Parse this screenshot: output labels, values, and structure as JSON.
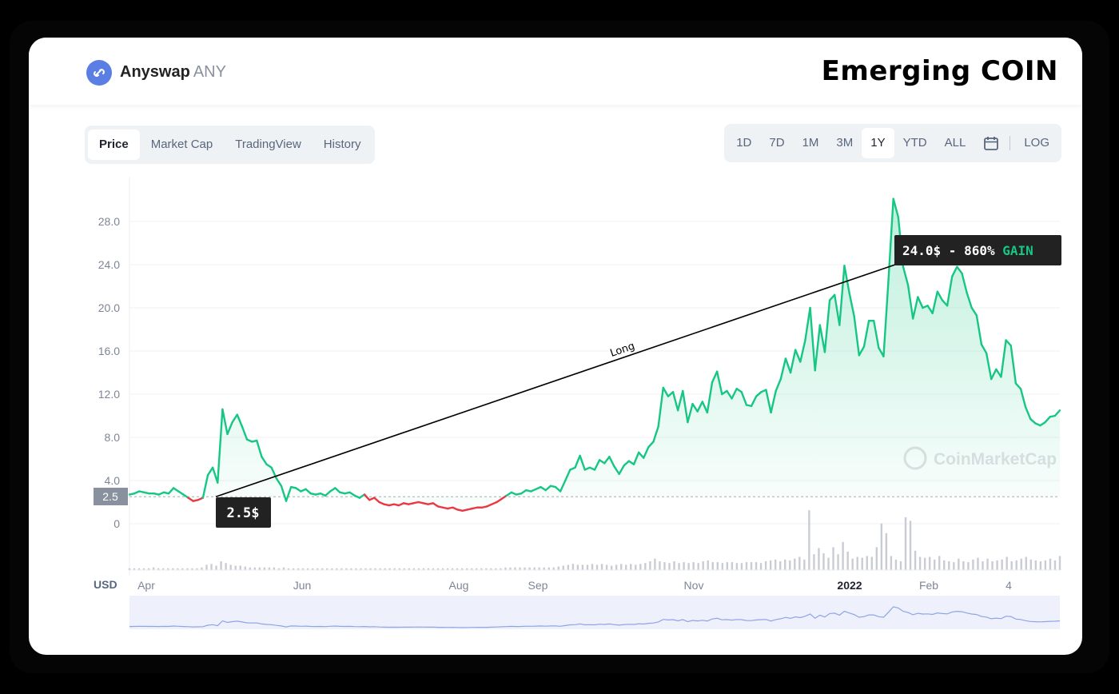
{
  "header": {
    "coin_name": "Anyswap",
    "coin_symbol": "ANY",
    "brand_title": "Emerging COIN"
  },
  "tabs": [
    "Price",
    "Market Cap",
    "TradingView",
    "History"
  ],
  "active_tab": "Price",
  "ranges": [
    "1D",
    "7D",
    "1M",
    "3M",
    "1Y",
    "YTD",
    "ALL"
  ],
  "active_range": "1Y",
  "log_label": "LOG",
  "colors": {
    "up": "#16c784",
    "down": "#ea3943",
    "accent": "#5b7ee5"
  },
  "annotations": {
    "entry_label": "2.5$",
    "exit_label": "24.0$ - 860% ",
    "exit_gain": "GAIN",
    "line_label": "Long",
    "current_price_tag": "2.5"
  },
  "watermark": "CoinMarketCap",
  "chart_data": {
    "type": "area",
    "ylim": [
      0,
      30
    ],
    "y_ticks": [
      "0",
      "4.0",
      "8.0",
      "12.0",
      "16.0",
      "20.0",
      "24.0",
      "28.0"
    ],
    "y_unit_label": "USD",
    "x_tick_labels": [
      "Apr",
      "Jun",
      "Aug",
      "Sep",
      "Nov",
      "2022",
      "Feb",
      "4"
    ],
    "baseline": 2.5,
    "price_series": [
      2.7,
      2.8,
      3.0,
      2.9,
      2.8,
      2.8,
      2.7,
      2.9,
      2.8,
      3.3,
      3.0,
      2.7,
      2.4,
      2.1,
      2.2,
      2.4,
      4.5,
      5.2,
      3.8,
      10.6,
      8.3,
      9.4,
      10.1,
      9.0,
      7.8,
      7.6,
      7.7,
      6.2,
      5.5,
      5.2,
      4.2,
      3.5,
      2.1,
      3.4,
      3.3,
      3.0,
      3.2,
      2.8,
      2.7,
      2.8,
      2.6,
      3.0,
      3.3,
      2.9,
      2.8,
      2.9,
      2.6,
      2.4,
      2.7,
      2.2,
      2.4,
      2.0,
      1.8,
      1.7,
      1.8,
      1.7,
      1.9,
      1.8,
      1.9,
      2.0,
      1.9,
      1.8,
      1.9,
      1.6,
      1.5,
      1.4,
      1.5,
      1.3,
      1.2,
      1.3,
      1.4,
      1.5,
      1.5,
      1.6,
      1.8,
      2.0,
      2.3,
      2.6,
      2.9,
      2.7,
      2.8,
      3.1,
      3.0,
      3.2,
      3.4,
      3.1,
      3.5,
      3.4,
      3.0,
      4.0,
      5.0,
      5.2,
      6.3,
      5.0,
      5.2,
      5.0,
      5.9,
      5.6,
      6.2,
      5.3,
      4.6,
      5.4,
      5.8,
      5.5,
      6.6,
      6.1,
      7.1,
      7.6,
      9.0,
      12.6,
      11.8,
      12.2,
      10.5,
      12.3,
      9.4,
      11.1,
      10.4,
      11.3,
      10.3,
      13.1,
      14.1,
      12.0,
      12.3,
      11.6,
      12.5,
      12.2,
      11.0,
      10.9,
      11.8,
      12.2,
      12.4,
      10.3,
      12.3,
      13.4,
      15.3,
      14.0,
      16.1,
      15.0,
      17.0,
      20.0,
      14.2,
      18.4,
      15.9,
      20.7,
      21.2,
      18.4,
      23.9,
      21.4,
      19.2,
      15.6,
      16.4,
      18.8,
      18.8,
      16.3,
      15.5,
      22.6,
      30.1,
      28.4,
      23.8,
      22.1,
      19.0,
      21.0,
      20.0,
      20.2,
      19.5,
      21.5,
      20.7,
      20.2,
      22.9,
      23.8,
      23.2,
      21.4,
      20.0,
      19.3,
      16.6,
      15.8,
      13.4,
      14.3,
      13.6,
      17.0,
      16.5,
      13.0,
      12.5,
      10.8,
      9.7,
      9.3,
      9.1,
      9.4,
      9.9,
      10.0,
      10.5
    ],
    "volume_series": [
      0.2,
      0.2,
      0.2,
      0.2,
      0.2,
      0.3,
      0.2,
      0.2,
      0.2,
      0.2,
      0.2,
      0.2,
      0.2,
      0.2,
      0.2,
      0.3,
      0.6,
      0.7,
      0.5,
      1.0,
      0.8,
      0.6,
      0.5,
      0.5,
      0.4,
      0.3,
      0.3,
      0.3,
      0.3,
      0.3,
      0.3,
      0.2,
      0.3,
      0.2,
      0.2,
      0.2,
      0.2,
      0.2,
      0.2,
      0.2,
      0.2,
      0.2,
      0.2,
      0.2,
      0.2,
      0.2,
      0.2,
      0.2,
      0.2,
      0.2,
      0.2,
      0.2,
      0.2,
      0.2,
      0.2,
      0.2,
      0.2,
      0.2,
      0.2,
      0.2,
      0.2,
      0.2,
      0.2,
      0.2,
      0.2,
      0.2,
      0.2,
      0.2,
      0.2,
      0.2,
      0.2,
      0.2,
      0.2,
      0.2,
      0.2,
      0.2,
      0.2,
      0.2,
      0.3,
      0.3,
      0.3,
      0.3,
      0.3,
      0.3,
      0.3,
      0.3,
      0.3,
      0.3,
      0.3,
      0.4,
      0.5,
      0.6,
      0.7,
      0.6,
      0.6,
      0.6,
      0.7,
      0.6,
      0.7,
      0.6,
      0.5,
      0.6,
      0.7,
      0.6,
      0.7,
      0.6,
      0.7,
      0.8,
      1.0,
      1.3,
      1.0,
      0.9,
      0.8,
      1.0,
      0.8,
      0.9,
      0.8,
      0.9,
      0.8,
      1.0,
      1.1,
      0.9,
      0.9,
      0.8,
      0.9,
      0.9,
      0.8,
      0.8,
      0.9,
      0.9,
      0.9,
      0.8,
      1.0,
      1.1,
      1.2,
      1.0,
      1.2,
      1.1,
      1.3,
      1.5,
      1.2,
      6.8,
      1.8,
      2.5,
      1.9,
      1.4,
      2.6,
      1.8,
      3.2,
      2.1,
      1.3,
      1.5,
      1.4,
      1.6,
      1.5,
      2.6,
      5.3,
      4.2,
      1.6,
      1.2,
      1.0,
      6.0,
      5.6,
      2.2,
      1.5,
      1.4,
      1.5,
      1.2,
      1.6,
      1.1,
      1.0,
      0.9,
      1.3,
      1.0,
      0.9,
      1.2,
      1.4,
      1.0,
      1.3,
      1.0,
      1.1,
      1.2,
      1.5,
      1.0,
      1.1,
      1.3,
      1.5,
      1.2,
      1.1,
      1.0,
      1.1,
      1.3,
      1.1,
      1.6
    ]
  }
}
